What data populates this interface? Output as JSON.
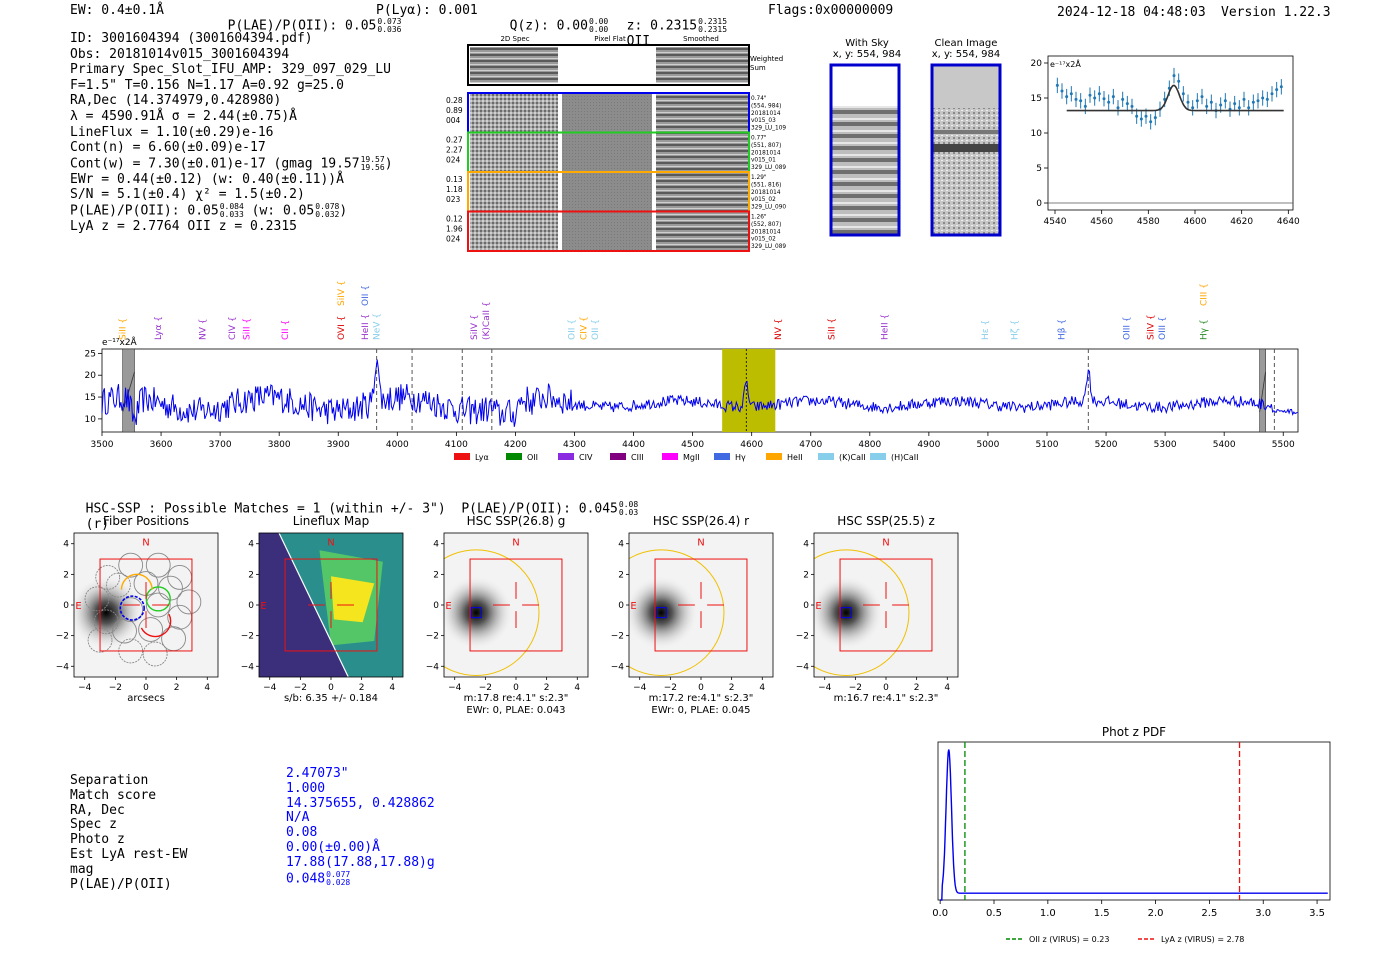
{
  "header": {
    "ew": "EW: 0.4±0.1Å",
    "plae": "P(LAE)/P(OII): 0.05",
    "plae_hi": "0.073",
    "plae_lo": "0.036",
    "plya": "P(Lyα): 0.001",
    "qz": "Q(z): 0.00",
    "qz_hi": "0.00",
    "qz_lo": "0.00",
    "z": "z: 0.2315",
    "z_hi": "0.2315",
    "z_lo": "0.2315",
    "z_line": "OII",
    "flags": "Flags:0x00000009",
    "datetime": "2024-12-18 04:48:03",
    "version": "Version 1.22.3"
  },
  "info": {
    "l1": "ID: 3001604394 (3001604394.pdf)",
    "l2": "Obs: 20181014v015_3001604394",
    "l3": "Primary Spec_Slot_IFU_AMP: 329_097_029_LU",
    "l4": "F=1.5\"  T=0.156  N=1.17  A=0.92  g=25.0",
    "l5": "RA,Dec (14.374979,0.428980)",
    "l6": "λ = 4590.91Å  σ = 2.44(±0.75)Å",
    "l7": "LineFlux = 1.10(±0.29)e-16",
    "l8": "Cont(n) = 6.60(±0.09)e-17",
    "l9": "Cont(w) = 7.30(±0.01)e-17 (gmag 19.57",
    "l9_hi": "19.57",
    "l9_lo": "19.56",
    "l9_end": ")",
    "l10": "EWr = 0.44(±0.12) (w: 0.40(±0.11))Å",
    "l11": "S/N = 5.1(±0.4)  χ² = 1.5(±0.2)",
    "l12a": "P(LAE)/P(OII): 0.05",
    "l12_hi": "0.084",
    "l12_lo": "0.033",
    "l12b": " (w: 0.05",
    "l12_hi2": "0.078",
    "l12_lo2": "0.032",
    "l12c": ")",
    "l13": "LyA z = 2.7764  OII z = 0.2315"
  },
  "cutouts": {
    "col_2d": "2D Spec",
    "col_flat": "Pixel Flat",
    "col_smooth": "Smoothed",
    "weighted": "Weighted Sum",
    "rows": [
      {
        "left": [
          "0.28",
          "0.89",
          "004"
        ],
        "right": [
          "0.74\"",
          "(554, 984)",
          "20181014",
          "v015_03",
          "329_LU_109"
        ],
        "color": "#0000ee"
      },
      {
        "left": [
          "0.27",
          "2.27",
          "024"
        ],
        "right": [
          "0.77\"",
          "(551, 807)",
          "20181014",
          "v015_01",
          "329_LU_089"
        ],
        "color": "#22cc22"
      },
      {
        "left": [
          "0.13",
          "1.18",
          "023"
        ],
        "right": [
          "1.29\"",
          "(551, 816)",
          "20181014",
          "v015_02",
          "329_LU_090"
        ],
        "color": "#ffaa00"
      },
      {
        "left": [
          "0.12",
          "1.96",
          "024"
        ],
        "right": [
          "1.26\"",
          "(552, 807)",
          "20181014",
          "v015_02",
          "329_LU_089"
        ],
        "color": "#ee1111"
      }
    ]
  },
  "sky": {
    "with_sky_title": "With Sky",
    "with_sky_xy": "x, y: 554, 984",
    "clean_title": "Clean Image",
    "clean_xy": "x, y: 554, 984"
  },
  "inset_chart_data": {
    "type": "line",
    "ylabel": "e⁻¹⁷x2Å",
    "xlim": [
      4537,
      4642
    ],
    "ylim": [
      -1,
      21
    ],
    "xticks": [
      4540,
      4560,
      4580,
      4600,
      4620,
      4640
    ],
    "yticks": [
      0,
      5,
      10,
      15,
      20
    ],
    "fit_center": 4590.9,
    "fit_sigma": 2.44,
    "fit_base": 13.2,
    "fit_amp": 3.6,
    "fit_range": [
      4545,
      4638
    ],
    "points": [
      [
        4541,
        16.8
      ],
      [
        4543,
        16
      ],
      [
        4545,
        15.2
      ],
      [
        4547,
        15.6
      ],
      [
        4549,
        14.8
      ],
      [
        4551,
        14.6
      ],
      [
        4553,
        13.8
      ],
      [
        4555,
        15.4
      ],
      [
        4557,
        15.0
      ],
      [
        4559,
        15.6
      ],
      [
        4561,
        14.9
      ],
      [
        4563,
        14.4
      ],
      [
        4565,
        15.2
      ],
      [
        4567,
        13.6
      ],
      [
        4569,
        14.8
      ],
      [
        4571,
        14.2
      ],
      [
        4573,
        13.8
      ],
      [
        4575,
        12.4
      ],
      [
        4577,
        12.0
      ],
      [
        4579,
        12.4
      ],
      [
        4581,
        11.6
      ],
      [
        4583,
        12.2
      ],
      [
        4585,
        13.4
      ],
      [
        4587,
        14.8
      ],
      [
        4589,
        16.4
      ],
      [
        4591,
        18.2
      ],
      [
        4593,
        17.4
      ],
      [
        4595,
        15.6
      ],
      [
        4597,
        14.4
      ],
      [
        4599,
        13.6
      ],
      [
        4601,
        14.6
      ],
      [
        4603,
        15.2
      ],
      [
        4605,
        13.8
      ],
      [
        4607,
        14.4
      ],
      [
        4609,
        13.2
      ],
      [
        4611,
        14.0
      ],
      [
        4613,
        14.6
      ],
      [
        4615,
        13.4
      ],
      [
        4617,
        14.2
      ],
      [
        4619,
        13.6
      ],
      [
        4621,
        14.8
      ],
      [
        4623,
        13.6
      ],
      [
        4625,
        14.4
      ],
      [
        4627,
        14.6
      ],
      [
        4629,
        15.0
      ],
      [
        4631,
        14.8
      ],
      [
        4633,
        15.6
      ],
      [
        4635,
        16.2
      ],
      [
        4637,
        16.6
      ]
    ]
  },
  "chart_data": {
    "type": "line",
    "title": "",
    "ylabel": "e⁻¹⁷x2Å",
    "xlim": [
      3500,
      5525
    ],
    "ylim": [
      7,
      26
    ],
    "xticks": [
      3500,
      3600,
      3700,
      3800,
      3900,
      4000,
      4100,
      4200,
      4300,
      4400,
      4500,
      4600,
      4700,
      4800,
      4900,
      5000,
      5100,
      5200,
      5300,
      5400,
      5500
    ],
    "yticks": [
      10,
      15,
      20,
      25
    ],
    "highlight_band": [
      4550,
      4640
    ],
    "highlight_color": "#bcbc00",
    "detection_wave": 4590.9,
    "masked_bands": [
      [
        3535,
        3555
      ],
      [
        5460,
        5470
      ]
    ],
    "dashed_lines": [
      3965,
      4025,
      4110,
      4160,
      5170,
      5485
    ],
    "peaks": [
      [
        3965,
        24.5
      ],
      [
        4591,
        19.0
      ],
      [
        5170,
        20.6
      ]
    ],
    "dips": [
      [
        3555,
        8.6
      ],
      [
        4175,
        11.2
      ],
      [
        4195,
        10.2
      ],
      [
        4230,
        12.4
      ]
    ],
    "line_labels": [
      {
        "name": "SiII",
        "x": 3540,
        "row": 2,
        "color": "#ffa500"
      },
      {
        "name": "Lyα",
        "x": 3600,
        "row": 2,
        "color": "#9932cc"
      },
      {
        "name": "NV",
        "x": 3675,
        "row": 2,
        "color": "#9932cc"
      },
      {
        "name": "CIV",
        "x": 3725,
        "row": 2,
        "color": "#9932cc"
      },
      {
        "name": "SiII",
        "x": 3750,
        "row": 2,
        "color": "#ff00ff"
      },
      {
        "name": "CII",
        "x": 3815,
        "row": 2,
        "color": "#ff00ff"
      },
      {
        "name": "OVI",
        "x": 3910,
        "row": 2,
        "color": "#dd0000"
      },
      {
        "name": "SiIV",
        "x": 3910,
        "row": 1,
        "color": "#ffa500"
      },
      {
        "name": "HeII",
        "x": 3950,
        "row": 2,
        "color": "#9932cc"
      },
      {
        "name": "OII",
        "x": 3950,
        "row": 1,
        "color": "#4169e1"
      },
      {
        "name": "NeV",
        "x": 3970,
        "row": 2,
        "color": "#87ceeb"
      },
      {
        "name": "SiIV",
        "x": 4135,
        "row": 2,
        "color": "#9932cc"
      },
      {
        "name": "(K)CaII",
        "x": 4155,
        "row": 2,
        "color": "#9932cc"
      },
      {
        "name": "OII",
        "x": 4300,
        "row": 2,
        "color": "#87ceeb"
      },
      {
        "name": "CIV",
        "x": 4320,
        "row": 2,
        "color": "#ffa500"
      },
      {
        "name": "OII",
        "x": 4340,
        "row": 2,
        "color": "#87ceeb"
      },
      {
        "name": "NV",
        "x": 4650,
        "row": 2,
        "color": "#dd0000"
      },
      {
        "name": "SiII",
        "x": 4740,
        "row": 2,
        "color": "#dd0000"
      },
      {
        "name": "HeII",
        "x": 4830,
        "row": 2,
        "color": "#9932cc"
      },
      {
        "name": "Hε",
        "x": 5000,
        "row": 2,
        "color": "#87ceeb"
      },
      {
        "name": "Hζ",
        "x": 5050,
        "row": 2,
        "color": "#87ceeb"
      },
      {
        "name": "Hβ",
        "x": 5130,
        "row": 2,
        "color": "#4169e1"
      },
      {
        "name": "OIII",
        "x": 5240,
        "row": 2,
        "color": "#4169e1"
      },
      {
        "name": "SiIV",
        "x": 5280,
        "row": 2,
        "color": "#dd0000"
      },
      {
        "name": "OIII",
        "x": 5300,
        "row": 2,
        "color": "#4169e1"
      },
      {
        "name": "Hγ",
        "x": 5370,
        "row": 2,
        "color": "#228b22"
      },
      {
        "name": "CIII",
        "x": 5370,
        "row": 1,
        "color": "#ffa500"
      }
    ],
    "legend": [
      {
        "label": "Lyα",
        "color": "#ee1111"
      },
      {
        "label": "OII",
        "color": "#008800"
      },
      {
        "label": "CIV",
        "color": "#8a2be2"
      },
      {
        "label": "CIII",
        "color": "#800080"
      },
      {
        "label": "MgII",
        "color": "#ff00ff"
      },
      {
        "label": "Hγ",
        "color": "#4169e1"
      },
      {
        "label": "HeII",
        "color": "#ffa500"
      },
      {
        "label": "(K)CaII",
        "color": "#87ceeb"
      },
      {
        "label": "(H)CaII",
        "color": "#87ceeb"
      }
    ]
  },
  "hsc": {
    "title": "HSC-SSP : Possible Matches = 1 (within +/- 3\")  P(LAE)/P(OII): 0.045",
    "title_hi": "0.08",
    "title_lo": "0.03",
    "title_end": "(r)",
    "ticks": [
      "4",
      "2",
      "0",
      "−2",
      "−4"
    ],
    "panels": [
      {
        "title": "Fiber Positions",
        "sub1": "arcsecs",
        "sub2": ""
      },
      {
        "title": "Lineflux Map",
        "sub1": "s/b: 6.35 +/- 0.184",
        "sub2": ""
      },
      {
        "title": "HSC SSP(26.8) g",
        "sub1": "m:17.8  re:4.1\"  s:2.3\"",
        "sub2": "EWr: 0, PLAE: 0.043"
      },
      {
        "title": "HSC SSP(26.4) r",
        "sub1": "m:17.2  re:4.1\"  s:2.3\"",
        "sub2": "EWr: 0, PLAE: 0.045"
      },
      {
        "title": "HSC SSP(25.5) z",
        "sub1": "m:16.7  re:4.1\"  s:2.3\"",
        "sub2": ""
      }
    ],
    "north": "N",
    "east": "E"
  },
  "match_table": {
    "labels": [
      "Separation",
      "Match score",
      "RA, Dec",
      "Spec z",
      "Photo z",
      "Est LyA rest-EW",
      "mag",
      "P(LAE)/P(OII)"
    ],
    "values": [
      "2.47073\"",
      "1.000",
      "14.375655, 0.428862",
      "N/A",
      "0.08",
      "0.00(±0.00)Å",
      "17.88(17.88,17.88)g",
      "0.048"
    ],
    "plae_hi": "0.077",
    "plae_lo": "0.028"
  },
  "photz_chart_data": {
    "type": "line",
    "title": "Phot z PDF",
    "xlim": [
      -0.02,
      3.62
    ],
    "ylim": [
      0,
      1.05
    ],
    "xticks": [
      0.0,
      0.5,
      1.0,
      1.5,
      2.0,
      2.5,
      3.0,
      3.5
    ],
    "xtick_labels": [
      "0.0",
      "0.5",
      "1.0",
      "1.5",
      "2.0",
      "2.5",
      "3.0",
      "3.5"
    ],
    "peak_z": 0.08,
    "peak_width": 0.025,
    "floor": 0.045,
    "oii_z": 0.23,
    "lya_z": 2.78,
    "legend": [
      {
        "label": "OII z (VIRUS) = 0.23",
        "color": "#008800"
      },
      {
        "label": "LyA z (VIRUS) = 2.78",
        "color": "#ee1111"
      }
    ]
  }
}
